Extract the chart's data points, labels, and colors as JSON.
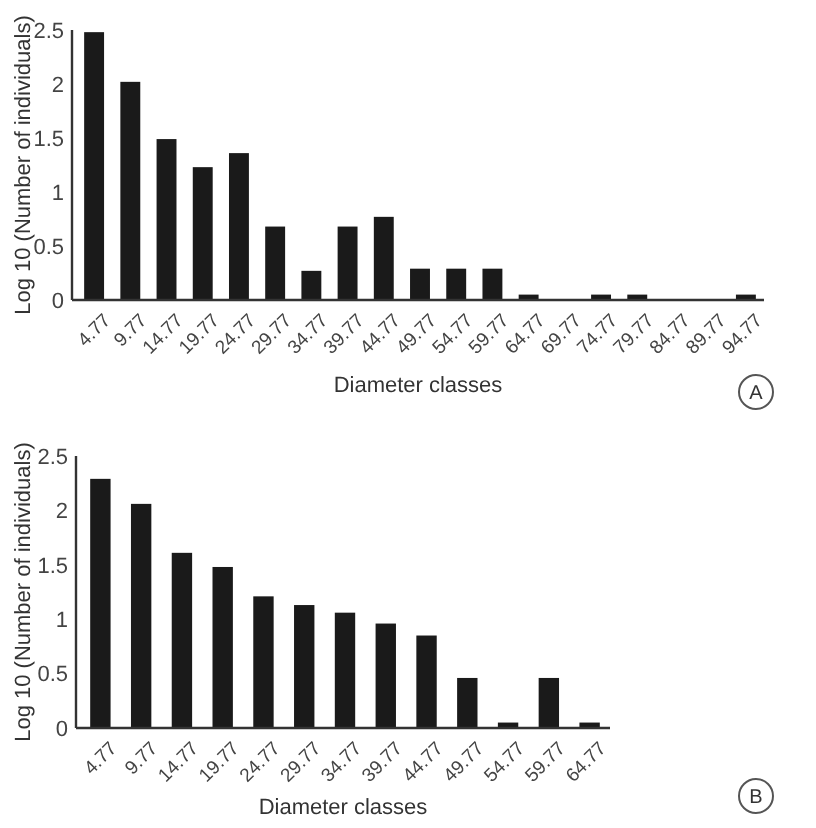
{
  "chart_data": [
    {
      "type": "bar",
      "xlabel": "Diameter classes",
      "ylabel": "Log 10 (Number of individuals)",
      "categories": [
        "4.77",
        "9.77",
        "14.77",
        "19.77",
        "24.77",
        "29.77",
        "34.77",
        "39.77",
        "44.77",
        "49.77",
        "54.77",
        "59.77",
        "64.77",
        "69.77",
        "74.77",
        "79.77",
        "84.77",
        "89.77",
        "94.77"
      ],
      "values": [
        2.48,
        2.02,
        1.49,
        1.23,
        1.36,
        0.68,
        0.27,
        0.68,
        0.77,
        0.29,
        0.29,
        0.29,
        0.05,
        0,
        0.05,
        0.05,
        0,
        0,
        0.05
      ],
      "color": "#1a1a1a",
      "ylim": [
        0,
        2.5
      ],
      "yticks": [
        0,
        0.5,
        1,
        1.5,
        2,
        2.5
      ],
      "annotations": [
        "A"
      ]
    },
    {
      "type": "bar",
      "xlabel": "Diameter classes",
      "ylabel": "Log 10 (Number of individuals)",
      "categories": [
        "4.77",
        "9.77",
        "14.77",
        "19.77",
        "24.77",
        "29.77",
        "34.77",
        "39.77",
        "44.77",
        "49.77",
        "54.77",
        "59.77",
        "64.77"
      ],
      "values": [
        2.29,
        2.06,
        1.61,
        1.48,
        1.21,
        1.13,
        1.06,
        0.96,
        0.85,
        0.46,
        0.05,
        0.46,
        0.05
      ],
      "color": "#1a1a1a",
      "ylim": [
        0,
        2.5
      ],
      "yticks": [
        0,
        0.5,
        1,
        1.5,
        2,
        2.5
      ],
      "annotations": [
        "B"
      ]
    }
  ]
}
